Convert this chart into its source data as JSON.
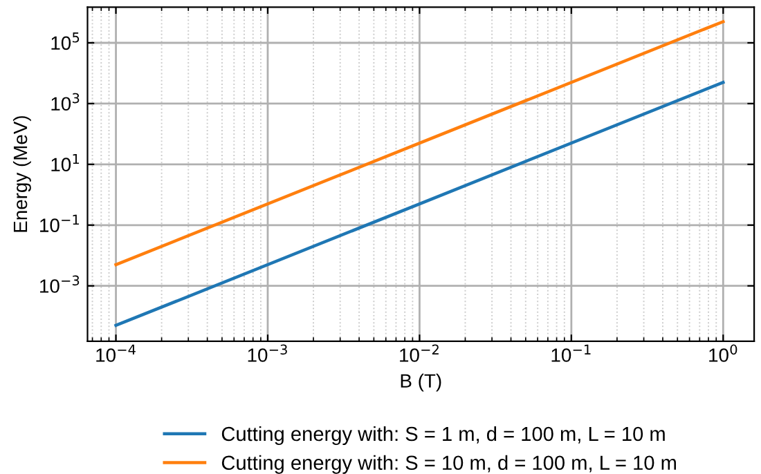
{
  "chart_data": {
    "type": "line",
    "xlabel": "B (T)",
    "ylabel": "Energy (MeV)",
    "log": "xy",
    "x": [
      0.0001,
      0.01,
      1
    ],
    "series": [
      {
        "name": "Cutting energy with: S = 1 m, d = 100 m, L = 10 m",
        "color": "#1f77b4",
        "values": [
          5e-05,
          0.5,
          5000
        ]
      },
      {
        "name": "Cutting energy with: S = 10 m, d = 100 m, L = 10 m",
        "color": "#ff7f0e",
        "values": [
          0.005,
          50,
          500000
        ]
      }
    ],
    "xlim": [
      6.5e-05,
      1.6
    ],
    "ylim": [
      1.5e-05,
      1500000
    ],
    "xticks": [
      {
        "value": 0.0001,
        "label": "10$^{−4}$"
      },
      {
        "value": 0.001,
        "label": "10$^{−3}$"
      },
      {
        "value": 0.01,
        "label": "10$^{−2}$"
      },
      {
        "value": 0.1,
        "label": "10$^{−1}$"
      },
      {
        "value": 1,
        "label": "10$^{0}$"
      }
    ],
    "yticks": [
      {
        "value": 0.001,
        "label": "10$^{−3}$"
      },
      {
        "value": 0.1,
        "label": "10$^{−1}$"
      },
      {
        "value": 10,
        "label": "10$^{1}$"
      },
      {
        "value": 1000,
        "label": "10$^{3}$"
      },
      {
        "value": 100000,
        "label": "10$^{5}$"
      }
    ],
    "grid": true,
    "legend": "bottom",
    "marker": "none",
    "line_style": "solid"
  }
}
